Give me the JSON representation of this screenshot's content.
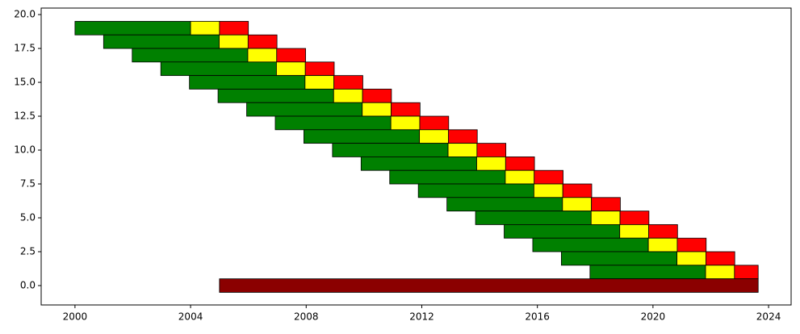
{
  "chart_data": {
    "type": "gantt",
    "y": [
      19,
      18,
      17,
      16,
      15,
      14,
      13,
      12,
      11,
      10,
      9,
      8,
      7,
      6,
      5,
      4,
      3,
      2,
      1,
      0
    ],
    "start": [
      2000,
      2000.99,
      2001.98,
      2002.97,
      2003.96,
      2004.95,
      2005.94,
      2006.93,
      2007.92,
      2008.91,
      2009.9,
      2010.89,
      2011.88,
      2012.87,
      2013.86,
      2014.85,
      2015.84,
      2016.83,
      2017.82,
      2005
    ],
    "series": [
      {
        "color": "#008000",
        "values": [
          4,
          4,
          4,
          4,
          4,
          4,
          4,
          4,
          4,
          4,
          4,
          4,
          4,
          4,
          4,
          4,
          4,
          4,
          4,
          null
        ]
      },
      {
        "color": "#ffff00",
        "values": [
          1,
          1,
          1,
          1,
          1,
          1,
          1,
          1,
          1,
          1,
          1,
          1,
          1,
          1,
          1,
          1,
          1,
          1,
          1,
          null
        ]
      },
      {
        "color": "#ff0000",
        "values": [
          1,
          1,
          1,
          1,
          1,
          1,
          1,
          1,
          1,
          1,
          1,
          1,
          1,
          1,
          1,
          1,
          1,
          1,
          0.82,
          null
        ]
      },
      {
        "color": "#8b0000",
        "values": [
          null,
          null,
          null,
          null,
          null,
          null,
          null,
          null,
          null,
          null,
          null,
          null,
          null,
          null,
          null,
          null,
          null,
          null,
          null,
          18.64
        ]
      }
    ],
    "bar_height": 1,
    "xlim": [
      1998.83,
      2024.78
    ],
    "xticks": [
      2000,
      2004,
      2008,
      2012,
      2016,
      2020,
      2024
    ],
    "ylim": [
      -1.43,
      20.48
    ],
    "yticks": [
      {
        "value": 0,
        "label": "0.0"
      },
      2.5,
      {
        "value": 5,
        "label": "5.0"
      },
      7.5,
      {
        "value": 10,
        "label": "10.0"
      },
      12.5,
      {
        "value": 15,
        "label": "15.0"
      },
      17.5,
      {
        "value": 20,
        "label": "20.0"
      }
    ]
  }
}
